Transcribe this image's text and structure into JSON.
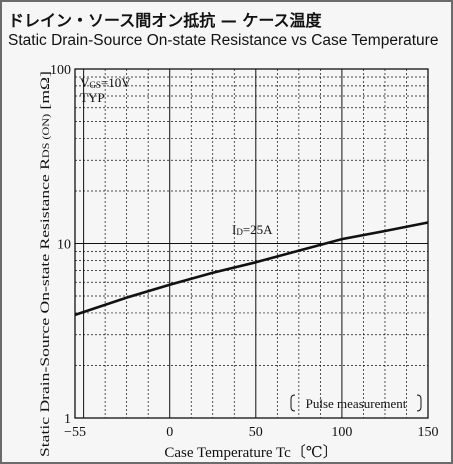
{
  "header": {
    "title_ja": "ドレイン・ソース間オン抵抗 — ケース温度",
    "title_en": "Static Drain-Source On-state Resistance vs Case Temperature"
  },
  "chart_data": {
    "type": "line",
    "title": "Static Drain-Source On-state Resistance vs Case Temperature",
    "xlabel": "Case Temperature Tc〔℃〕",
    "ylabel": "Static Drain-Source On-state Resistance RDS (ON) [mΩ]",
    "xlim": [
      -55,
      150
    ],
    "ylim": [
      1,
      100
    ],
    "yscale": "log",
    "x_ticks": [
      "−55",
      "0",
      "50",
      "100",
      "150"
    ],
    "y_ticks": [
      "1",
      "10",
      "100"
    ],
    "grid": true,
    "conditions": [
      "VGS=10V",
      "TYP"
    ],
    "note": "Pulse measurement",
    "series": [
      {
        "name": "ID=25A",
        "x": [
          -55,
          -25,
          0,
          25,
          50,
          75,
          100,
          125,
          150
        ],
        "y": [
          3.9,
          4.9,
          5.8,
          6.8,
          7.8,
          9.1,
          10.6,
          11.8,
          13.2
        ],
        "color": "#111111"
      }
    ]
  }
}
